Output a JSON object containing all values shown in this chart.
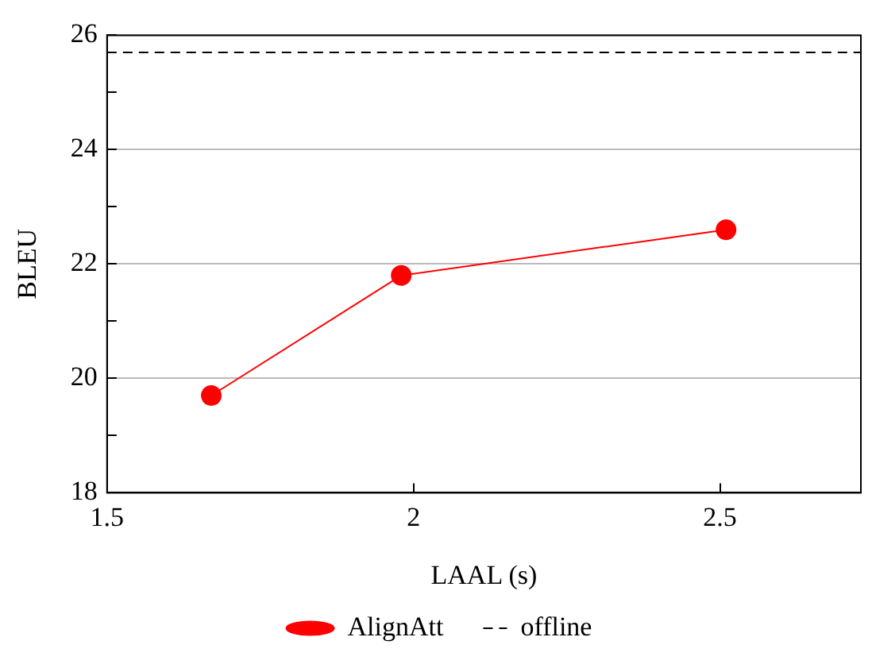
{
  "chart_data": {
    "type": "line",
    "xlabel": "LAAL (s)",
    "ylabel": "BLEU",
    "x": [
      1.67,
      1.98,
      2.51
    ],
    "series": [
      {
        "name": "AlignAtt",
        "color": "#ff0000",
        "values": [
          19.7,
          21.8,
          22.6
        ]
      }
    ],
    "xlim": [
      1.5,
      2.73
    ],
    "xticks": [
      1.5,
      2,
      2.5
    ],
    "ylim": [
      18,
      26
    ],
    "yticks": [
      18,
      {
        "value": 19,
        "label": null
      },
      20,
      {
        "value": 21,
        "label": null
      },
      22,
      {
        "value": 23,
        "label": null
      },
      24,
      {
        "value": 25,
        "label": null
      },
      26
    ],
    "ref_lines": [
      {
        "axis": "y",
        "value": 25.7,
        "label": "offline",
        "color": "#000000",
        "line_style": "dashed"
      }
    ],
    "grid": "y",
    "legend": "bottom",
    "marker": "circle",
    "line_style": "solid"
  }
}
